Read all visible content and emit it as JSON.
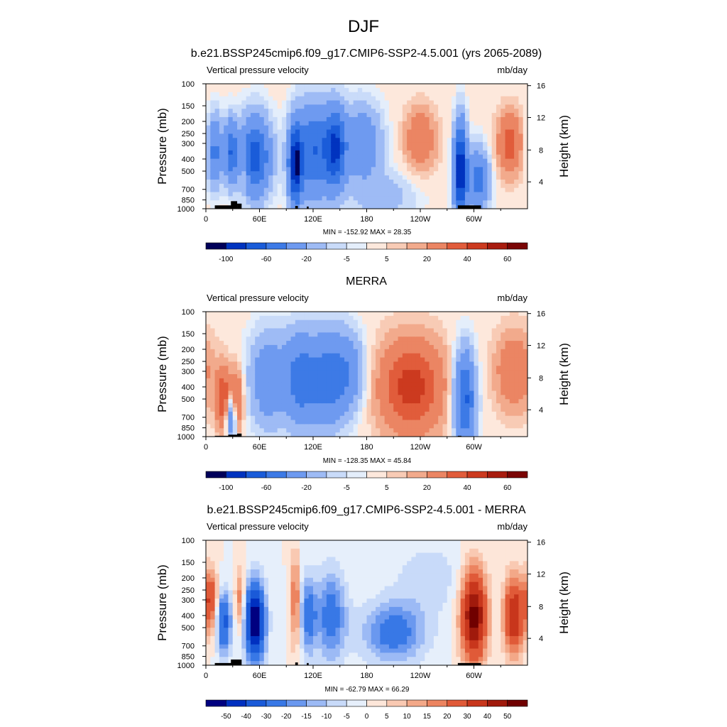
{
  "figure_title": "DJF",
  "chart_data": [
    {
      "type": "heatmap",
      "title": "b.e21.BSSP245cmip6.f09_g17.CMIP6-SSP2-4.5.001 (yrs 2065-2089)",
      "left_label": "Vertical pressure velocity",
      "right_label": "mb/day",
      "ylabel": "Pressure (mb)",
      "y2label": "Height (km)",
      "xticks": [
        "0",
        "60E",
        "120E",
        "180",
        "120W",
        "60W"
      ],
      "yticks": [
        "100",
        "150",
        "200",
        "250",
        "300",
        "400",
        "500",
        "700",
        "850",
        "1000"
      ],
      "y2ticks": [
        "4",
        "8",
        "12",
        "16"
      ],
      "stats": "MIN = -152.92  MAX =  28.35",
      "colorbar_labels": [
        "-100",
        "-60",
        "-20",
        "-5",
        "5",
        "20",
        "40",
        "60"
      ],
      "min": -152.92,
      "max": 28.35,
      "features": [
        {
          "lon": 10,
          "p": 350,
          "v": -45,
          "sx": 6,
          "sp": 0.45
        },
        {
          "lon": 28,
          "p": 350,
          "v": -55,
          "sx": 5,
          "sp": 0.4
        },
        {
          "lon": 42,
          "p": 500,
          "v": 15,
          "sx": 3,
          "sp": 0.3
        },
        {
          "lon": 55,
          "p": 380,
          "v": -70,
          "sx": 12,
          "sp": 0.5
        },
        {
          "lon": 100,
          "p": 450,
          "v": -90,
          "sx": 5,
          "sp": 0.5
        },
        {
          "lon": 120,
          "p": 350,
          "v": -60,
          "sx": 15,
          "sp": 0.6
        },
        {
          "lon": 145,
          "p": 330,
          "v": -70,
          "sx": 8,
          "sp": 0.5
        },
        {
          "lon": 175,
          "p": 300,
          "v": -35,
          "sx": 15,
          "sp": 0.5
        },
        {
          "lon": 240,
          "p": 280,
          "v": 20,
          "sx": 12,
          "sp": 0.4
        },
        {
          "lon": 285,
          "p": 500,
          "v": -100,
          "sx": 5,
          "sp": 0.6
        },
        {
          "lon": 305,
          "p": 600,
          "v": -50,
          "sx": 8,
          "sp": 0.4
        },
        {
          "lon": 340,
          "p": 300,
          "v": 25,
          "sx": 10,
          "sp": 0.4
        },
        {
          "lon": 200,
          "p": 800,
          "v": -15,
          "sx": 25,
          "sp": 0.3
        }
      ],
      "topography": [
        [
          10,
          30,
          940
        ],
        [
          28,
          35,
          870
        ],
        [
          35,
          40,
          910
        ],
        [
          100,
          103,
          950
        ],
        [
          113,
          115,
          960
        ],
        [
          282,
          308,
          940
        ]
      ]
    },
    {
      "type": "heatmap",
      "title": "MERRA",
      "left_label": "Vertical pressure velocity",
      "right_label": "mb/day",
      "ylabel": "Pressure (mb)",
      "y2label": "Height (km)",
      "xticks": [
        "0",
        "60E",
        "120E",
        "180",
        "120W",
        "60W"
      ],
      "yticks": [
        "100",
        "150",
        "200",
        "250",
        "300",
        "400",
        "500",
        "700",
        "850",
        "1000"
      ],
      "y2ticks": [
        "4",
        "8",
        "12",
        "16"
      ],
      "stats": "MIN = -128.35  MAX =  45.84",
      "colorbar_labels": [
        "-100",
        "-60",
        "-20",
        "-5",
        "5",
        "20",
        "40",
        "60"
      ],
      "min": -128.35,
      "max": 45.84,
      "features": [
        {
          "lon": 20,
          "p": 500,
          "v": 30,
          "sx": 6,
          "sp": 0.4
        },
        {
          "lon": 35,
          "p": 500,
          "v": 25,
          "sx": 5,
          "sp": 0.4
        },
        {
          "lon": 28,
          "p": 700,
          "v": -40,
          "sx": 4,
          "sp": 0.3
        },
        {
          "lon": 70,
          "p": 350,
          "v": -35,
          "sx": 15,
          "sp": 0.6
        },
        {
          "lon": 105,
          "p": 350,
          "v": -45,
          "sx": 12,
          "sp": 0.6
        },
        {
          "lon": 135,
          "p": 350,
          "v": -50,
          "sx": 15,
          "sp": 0.6
        },
        {
          "lon": 160,
          "p": 300,
          "v": -30,
          "sx": 12,
          "sp": 0.5
        },
        {
          "lon": 230,
          "p": 400,
          "v": 35,
          "sx": 25,
          "sp": 0.6
        },
        {
          "lon": 290,
          "p": 500,
          "v": -65,
          "sx": 8,
          "sp": 0.6
        },
        {
          "lon": 345,
          "p": 300,
          "v": 20,
          "sx": 15,
          "sp": 0.5
        }
      ],
      "topography": [
        [
          10,
          25,
          985
        ],
        [
          25,
          35,
          965
        ],
        [
          35,
          40,
          945
        ],
        [
          282,
          286,
          985
        ]
      ]
    },
    {
      "type": "heatmap",
      "title": "b.e21.BSSP245cmip6.f09_g17.CMIP6-SSP2-4.5.001 - MERRA",
      "left_label": "Vertical pressure velocity",
      "right_label": "mb/day",
      "ylabel": "Pressure (mb)",
      "y2label": "Height (km)",
      "xticks": [
        "0",
        "60E",
        "120E",
        "180",
        "120W",
        "60W"
      ],
      "yticks": [
        "100",
        "150",
        "200",
        "250",
        "300",
        "400",
        "500",
        "700",
        "850",
        "1000"
      ],
      "y2ticks": [
        "4",
        "8",
        "12",
        "16"
      ],
      "stats": "MIN = -62.79  MAX =  66.29",
      "colorbar_labels": [
        "-50",
        "-40",
        "-30",
        "-20",
        "-15",
        "-10",
        "-5",
        "0",
        "5",
        "10",
        "15",
        "20",
        "30",
        "40",
        "50"
      ],
      "min": -62.79,
      "max": 66.29,
      "features": [
        {
          "lon": 5,
          "p": 300,
          "v": 30,
          "sx": 6,
          "sp": 0.4
        },
        {
          "lon": 20,
          "p": 450,
          "v": -35,
          "sx": 6,
          "sp": 0.4
        },
        {
          "lon": 38,
          "p": 300,
          "v": 20,
          "sx": 4,
          "sp": 0.4
        },
        {
          "lon": 55,
          "p": 450,
          "v": -60,
          "sx": 8,
          "sp": 0.5
        },
        {
          "lon": 100,
          "p": 300,
          "v": 25,
          "sx": 3,
          "sp": 0.6
        },
        {
          "lon": 115,
          "p": 400,
          "v": -25,
          "sx": 6,
          "sp": 0.5
        },
        {
          "lon": 140,
          "p": 400,
          "v": -25,
          "sx": 12,
          "sp": 0.6
        },
        {
          "lon": 210,
          "p": 550,
          "v": -25,
          "sx": 25,
          "sp": 0.4
        },
        {
          "lon": 300,
          "p": 400,
          "v": 55,
          "sx": 10,
          "sp": 0.6
        },
        {
          "lon": 345,
          "p": 400,
          "v": 40,
          "sx": 8,
          "sp": 0.5
        },
        {
          "lon": 250,
          "p": 200,
          "v": -8,
          "sx": 30,
          "sp": 0.5
        }
      ],
      "topography": [
        [
          10,
          30,
          960
        ],
        [
          28,
          40,
          900
        ],
        [
          100,
          103,
          950
        ],
        [
          113,
          115,
          960
        ],
        [
          282,
          308,
          960
        ]
      ]
    }
  ],
  "colorbar_fills": [
    "#000059",
    "#0033bf",
    "#1a5cd9",
    "#3d7ae6",
    "#6e9af0",
    "#9ebbf5",
    "#c9dbf9",
    "#e4eefb",
    "#fde8dc",
    "#f8cbb5",
    "#f2aa8c",
    "#eb8563",
    "#e15c3b",
    "#cc3a1f",
    "#a81c0f",
    "#7a0505"
  ],
  "colorbar_fills_15": [
    "#000080",
    "#0030c0",
    "#1a5ad8",
    "#3878e6",
    "#6a98ef",
    "#9cbaf5",
    "#c8daf9",
    "#e6effb",
    "#fde6d9",
    "#f9c9b2",
    "#f3a888",
    "#ec8460",
    "#e05a38",
    "#c8361c",
    "#a01a0c",
    "#700000"
  ],
  "levels_1": [
    -100,
    -80,
    -60,
    -40,
    -20,
    -10,
    -5,
    -2,
    2,
    5,
    10,
    20,
    30,
    40,
    50,
    60,
    70
  ],
  "levels_3": [
    -50,
    -40,
    -30,
    -20,
    -15,
    -10,
    -5,
    0,
    5,
    10,
    15,
    20,
    30,
    40,
    50
  ]
}
